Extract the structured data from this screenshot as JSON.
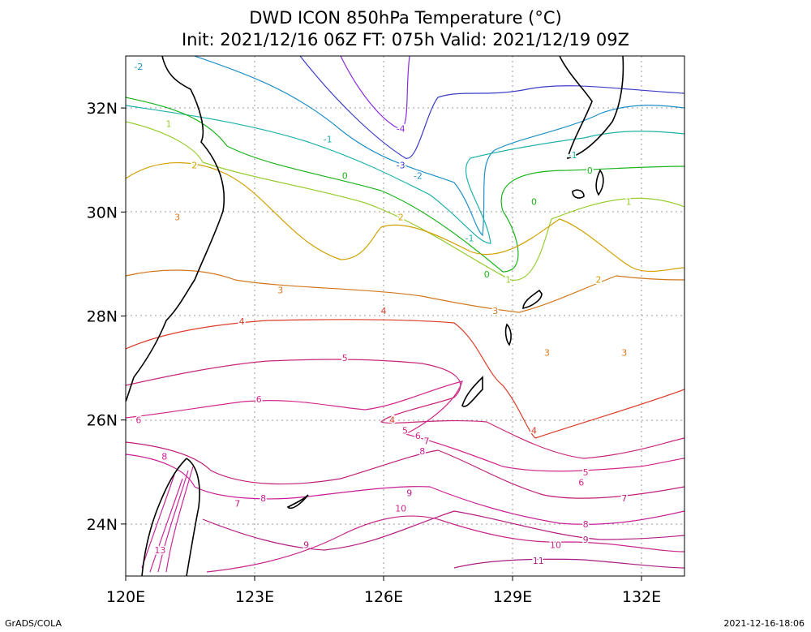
{
  "title": {
    "line1": "DWD ICON 850hPa Temperature (°C)",
    "line2": "Init: 2021/12/16 06Z  FT: 075h  Valid: 2021/12/19 09Z"
  },
  "footer": {
    "left": "GrADS/COLA",
    "right": "2021-12-16-18:06"
  },
  "axes": {
    "lon_ticks": [
      {
        "value": 120,
        "label": "120E"
      },
      {
        "value": 123,
        "label": "123E"
      },
      {
        "value": 126,
        "label": "126E"
      },
      {
        "value": 129,
        "label": "129E"
      },
      {
        "value": 132,
        "label": "132E"
      }
    ],
    "lat_ticks": [
      {
        "value": 24,
        "label": "24N"
      },
      {
        "value": 26,
        "label": "26N"
      },
      {
        "value": 28,
        "label": "28N"
      },
      {
        "value": 30,
        "label": "30N"
      },
      {
        "value": 32,
        "label": "32N"
      }
    ],
    "lon_range": [
      120,
      133
    ],
    "lat_range": [
      23,
      33
    ],
    "grid": true
  },
  "contour_colors": {
    "-4": "#8a2be2",
    "-3": "#3c3cc8",
    "-2": "#1e90c8",
    "-1": "#20b2aa",
    "0": "#1cb41c",
    "1": "#9acd32",
    "2": "#d2a000",
    "3": "#d2781e",
    "4": "#dc3c28",
    "5": "#c8287a",
    "6": "#d2288c",
    "7": "#c01e78",
    "8": "#c81e96",
    "9": "#b41e82",
    "10": "#c8288c",
    "11": "#aa1e80",
    "13": "#c8289a"
  },
  "contour_labels": [
    {
      "value": "-4",
      "lon": 126.4,
      "lat": 31.6
    },
    {
      "value": "-3",
      "lon": 126.4,
      "lat": 30.9
    },
    {
      "value": "-2",
      "lon": 120.3,
      "lat": 32.8
    },
    {
      "value": "-2",
      "lon": 126.8,
      "lat": 30.7
    },
    {
      "value": "-1",
      "lon": 124.7,
      "lat": 31.4
    },
    {
      "value": "-1",
      "lon": 128.0,
      "lat": 29.5
    },
    {
      "value": "-1",
      "lon": 130.4,
      "lat": 31.1
    },
    {
      "value": "0",
      "lon": 125.1,
      "lat": 30.7
    },
    {
      "value": "0",
      "lon": 128.4,
      "lat": 28.8
    },
    {
      "value": "0",
      "lon": 130.8,
      "lat": 30.8
    },
    {
      "value": "0",
      "lon": 129.5,
      "lat": 30.2
    },
    {
      "value": "1",
      "lon": 121.0,
      "lat": 31.7
    },
    {
      "value": "1",
      "lon": 128.9,
      "lat": 28.7
    },
    {
      "value": "1",
      "lon": 131.7,
      "lat": 30.2
    },
    {
      "value": "2",
      "lon": 121.6,
      "lat": 30.9
    },
    {
      "value": "2",
      "lon": 126.4,
      "lat": 29.9
    },
    {
      "value": "2",
      "lon": 131.0,
      "lat": 28.7
    },
    {
      "value": "3",
      "lon": 121.2,
      "lat": 29.9
    },
    {
      "value": "3",
      "lon": 123.6,
      "lat": 28.5
    },
    {
      "value": "3",
      "lon": 128.6,
      "lat": 28.1
    },
    {
      "value": "3",
      "lon": 129.8,
      "lat": 27.3
    },
    {
      "value": "3",
      "lon": 131.6,
      "lat": 27.3
    },
    {
      "value": "4",
      "lon": 122.7,
      "lat": 27.9
    },
    {
      "value": "4",
      "lon": 126.0,
      "lat": 28.1
    },
    {
      "value": "4",
      "lon": 129.5,
      "lat": 25.8
    },
    {
      "value": "4",
      "lon": 126.2,
      "lat": 26.0
    },
    {
      "value": "5",
      "lon": 125.1,
      "lat": 27.2
    },
    {
      "value": "5",
      "lon": 126.5,
      "lat": 25.8
    },
    {
      "value": "5",
      "lon": 130.7,
      "lat": 25.0
    },
    {
      "value": "6",
      "lon": 123.1,
      "lat": 26.4
    },
    {
      "value": "6",
      "lon": 120.3,
      "lat": 26.0
    },
    {
      "value": "6",
      "lon": 126.8,
      "lat": 25.7
    },
    {
      "value": "6",
      "lon": 130.6,
      "lat": 24.8
    },
    {
      "value": "7",
      "lon": 122.6,
      "lat": 24.4
    },
    {
      "value": "7",
      "lon": 127.0,
      "lat": 25.6
    },
    {
      "value": "7",
      "lon": 131.6,
      "lat": 24.5
    },
    {
      "value": "8",
      "lon": 120.9,
      "lat": 25.3
    },
    {
      "value": "8",
      "lon": 123.2,
      "lat": 24.5
    },
    {
      "value": "8",
      "lon": 126.9,
      "lat": 25.4
    },
    {
      "value": "8",
      "lon": 130.7,
      "lat": 24.0
    },
    {
      "value": "9",
      "lon": 126.6,
      "lat": 24.6
    },
    {
      "value": "9",
      "lon": 124.2,
      "lat": 23.6
    },
    {
      "value": "9",
      "lon": 130.7,
      "lat": 23.7
    },
    {
      "value": "10",
      "lon": 126.4,
      "lat": 24.3
    },
    {
      "value": "10",
      "lon": 130.0,
      "lat": 23.6
    },
    {
      "value": "11",
      "lon": 129.6,
      "lat": 23.3
    },
    {
      "value": "13",
      "lon": 120.8,
      "lat": 23.5
    }
  ]
}
